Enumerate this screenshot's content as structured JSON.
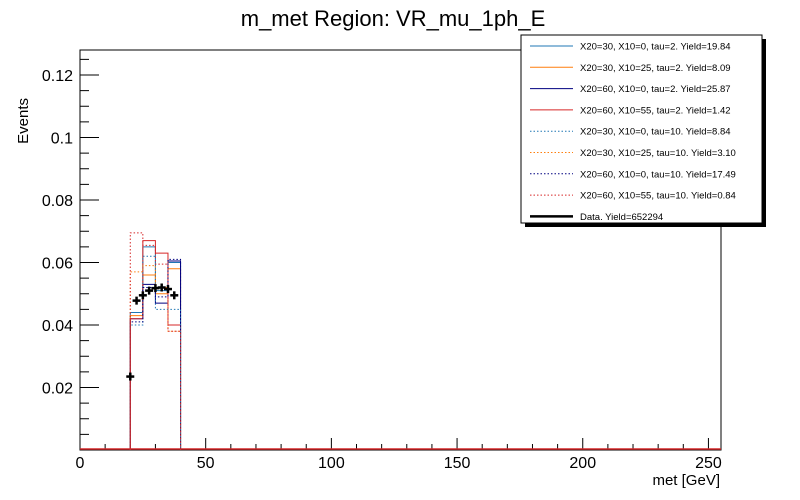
{
  "chart_data": {
    "type": "histogram",
    "title": "m_met Region: VR_mu_1ph_E",
    "xlabel": "met [GeV]",
    "ylabel": "Events",
    "xlim": [
      0,
      255
    ],
    "ylim": [
      0,
      0.128
    ],
    "x_ticks": [
      0,
      50,
      100,
      150,
      200,
      250
    ],
    "y_ticks": [
      0.02,
      0.04,
      0.06,
      0.08,
      0.1,
      0.12
    ],
    "bin_edges": [
      20,
      25,
      30,
      35,
      40
    ],
    "legend_position": "top-right",
    "grid": false,
    "series": [
      {
        "name": "X20=30, X10=0, tau=2. Yield=19.84",
        "color": "#1f77b4",
        "style": "solid",
        "values": [
          0.044,
          0.065,
          0.051,
          0.06
        ]
      },
      {
        "name": "X20=30, X10=25, tau=2. Yield=8.09",
        "color": "#ff7f0e",
        "style": "solid",
        "values": [
          0.043,
          0.056,
          0.05,
          0.058
        ]
      },
      {
        "name": "X20=60, X10=0, tau=2. Yield=25.87",
        "color": "#000080",
        "style": "solid",
        "values": [
          0.042,
          0.053,
          0.047,
          0.0605
        ]
      },
      {
        "name": "X20=60, X10=55, tau=2. Yield=1.42",
        "color": "#d62728",
        "style": "solid",
        "values": [
          0.042,
          0.067,
          0.063,
          0.04
        ]
      },
      {
        "name": "X20=30, X10=0, tau=10. Yield=8.84",
        "color": "#1f77b4",
        "style": "dotted",
        "values": [
          0.04,
          0.062,
          0.045,
          0.045
        ]
      },
      {
        "name": "X20=30, X10=25, tau=10. Yield=3.10",
        "color": "#ff7f0e",
        "style": "dotted",
        "values": [
          0.057,
          0.059,
          0.052,
          0.038
        ]
      },
      {
        "name": "X20=60, X10=0, tau=10. Yield=17.49",
        "color": "#000080",
        "style": "dotted",
        "values": [
          0.041,
          0.052,
          0.049,
          0.061
        ]
      },
      {
        "name": "X20=60, X10=55, tau=10. Yield=0.84",
        "color": "#d62728",
        "style": "dotted",
        "values": [
          0.0695,
          0.0655,
          0.0595,
          0.038
        ]
      }
    ],
    "data_points": {
      "name": "Data. Yield=652294",
      "color": "#000000",
      "x": [
        20,
        22.5,
        25,
        27.5,
        30,
        32.5,
        35,
        37.5
      ],
      "y": [
        0.0235,
        0.0478,
        0.0495,
        0.051,
        0.0518,
        0.052,
        0.0515,
        0.0495
      ]
    }
  }
}
